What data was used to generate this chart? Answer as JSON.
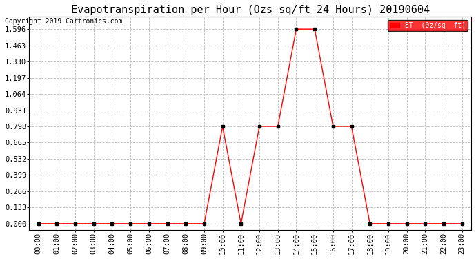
{
  "title": "Evapotranspiration per Hour (Ozs sq/ft 24 Hours) 20190604",
  "copyright": "Copyright 2019 Cartronics.com",
  "legend_label": "ET  (0z/sq  ft)",
  "x_labels": [
    "00:00",
    "01:00",
    "02:00",
    "03:00",
    "04:00",
    "05:00",
    "06:00",
    "07:00",
    "08:00",
    "09:00",
    "10:00",
    "11:00",
    "12:00",
    "13:00",
    "14:00",
    "15:00",
    "16:00",
    "17:00",
    "18:00",
    "19:00",
    "20:00",
    "21:00",
    "22:00",
    "23:00"
  ],
  "y_values": [
    0.0,
    0.0,
    0.0,
    0.0,
    0.0,
    0.0,
    0.0,
    0.0,
    0.0,
    0.0,
    0.798,
    0.0,
    0.798,
    0.798,
    1.596,
    1.596,
    0.798,
    0.798,
    0.0,
    0.0,
    0.0,
    0.0,
    0.0,
    0.0
  ],
  "y_ticks": [
    0.0,
    0.133,
    0.266,
    0.399,
    0.532,
    0.665,
    0.798,
    0.931,
    1.064,
    1.197,
    1.33,
    1.463,
    1.596
  ],
  "ylim_min": -0.05,
  "ylim_max": 1.696,
  "line_color": "#ff0000",
  "marker_color": "#000000",
  "bg_color": "#ffffff",
  "grid_color": "#bbbbbb",
  "title_fontsize": 11,
  "copyright_fontsize": 7,
  "legend_bg_color": "#ff0000",
  "legend_text_color": "#ffffff",
  "tick_fontsize": 7.5
}
